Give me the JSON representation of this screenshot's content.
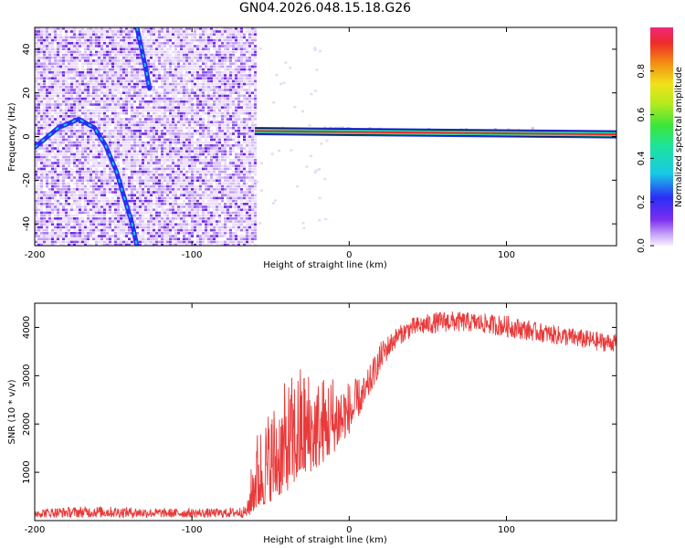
{
  "title": "GN04.2026.048.15.18.G26",
  "chart_data": [
    {
      "type": "heatmap",
      "xlabel": "Height of straight line (km)",
      "ylabel": "Frequency (Hz)",
      "xlim": [
        -200,
        170
      ],
      "ylim": [
        -50,
        50
      ],
      "xticks": [
        -200,
        -100,
        0,
        100
      ],
      "yticks": [
        -40,
        -20,
        0,
        20,
        40
      ],
      "noise_region_x": [
        -200,
        -60
      ],
      "arcs": [
        {
          "name": "main-arc",
          "points": [
            [
              -200,
              -5
            ],
            [
              -185,
              4
            ],
            [
              -172,
              8
            ],
            [
              -162,
              4
            ],
            [
              -155,
              -4
            ],
            [
              -148,
              -16
            ],
            [
              -143,
              -28
            ],
            [
              -138,
              -40
            ],
            [
              -135,
              -50
            ]
          ]
        },
        {
          "name": "upper-arc",
          "points": [
            [
              -135,
              50
            ],
            [
              -132,
              40
            ],
            [
              -129,
              30
            ],
            [
              -127,
              22
            ]
          ]
        }
      ],
      "carrier": {
        "x_start": -60,
        "x_end": 170,
        "freq_start": 2.5,
        "freq_end": 1.0
      },
      "colorbar": {
        "label": "Normalized spectral amplitude",
        "ticks": [
          "0.0",
          "0.2",
          "0.4",
          "0.6",
          "0.8"
        ],
        "range": [
          0,
          1
        ]
      }
    },
    {
      "type": "line",
      "xlabel": "Height of straight line (km)",
      "ylabel": "SNR (10 * v/v)",
      "xlim": [
        -200,
        170
      ],
      "ylim": [
        0,
        4500
      ],
      "xticks": [
        -200,
        -100,
        0,
        100
      ],
      "yticks": [
        1000,
        2000,
        3000,
        4000
      ],
      "color": "#e83a3a",
      "envelope": {
        "x": [
          -200,
          -180,
          -160,
          -140,
          -120,
          -100,
          -80,
          -65,
          -60,
          -50,
          -40,
          -30,
          -20,
          -10,
          0,
          10,
          20,
          30,
          40,
          60,
          80,
          100,
          120,
          140,
          160,
          170
        ],
        "low": [
          60,
          60,
          60,
          60,
          60,
          60,
          60,
          60,
          200,
          400,
          600,
          900,
          1100,
          1400,
          1800,
          2400,
          3100,
          3600,
          3800,
          3900,
          3900,
          3800,
          3700,
          3600,
          3500,
          3500
        ],
        "high": [
          250,
          280,
          300,
          280,
          250,
          250,
          250,
          300,
          1800,
          2400,
          2900,
          3300,
          3000,
          3100,
          2900,
          3000,
          3700,
          4000,
          4200,
          4350,
          4300,
          4250,
          4100,
          4000,
          3900,
          3850
        ]
      }
    }
  ]
}
